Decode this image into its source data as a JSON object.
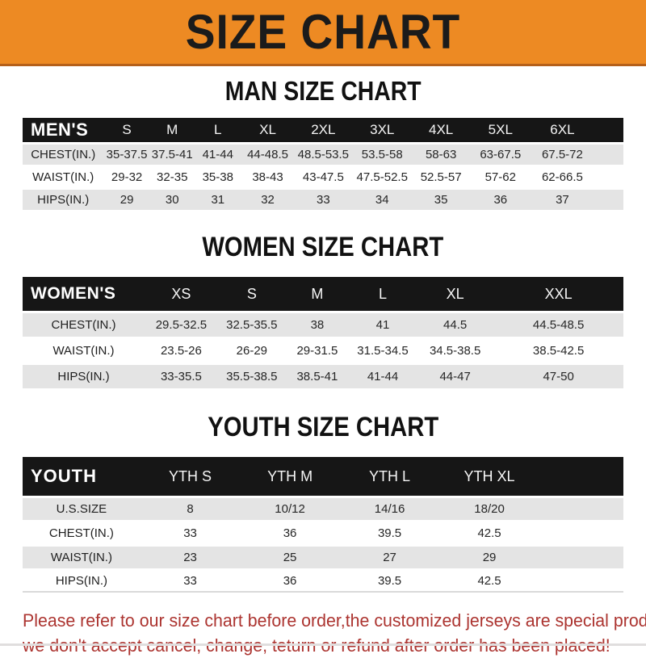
{
  "banner": {
    "title": "SIZE CHART"
  },
  "colors": {
    "banner_bg": "#ED8A23",
    "banner_border": "#B5601A",
    "header_bar": "#161616",
    "row_alt": "#E4E4E4",
    "footer_text": "#AC3430"
  },
  "sections": [
    {
      "heading": "MAN SIZE CHART",
      "header_label": "MEN'S",
      "columns": [
        "S",
        "M",
        "L",
        "XL",
        "2XL",
        "3XL",
        "4XL",
        "5XL",
        "6XL"
      ],
      "rows": [
        {
          "label": "CHEST(IN.)",
          "values": [
            "35-37.5",
            "37.5-41",
            "41-44",
            "44-48.5",
            "48.5-53.5",
            "53.5-58",
            "58-63",
            "63-67.5",
            "67.5-72"
          ]
        },
        {
          "label": "WAIST(IN.)",
          "values": [
            "29-32",
            "32-35",
            "35-38",
            "38-43",
            "43-47.5",
            "47.5-52.5",
            "52.5-57",
            "57-62",
            "62-66.5"
          ]
        },
        {
          "label": "HIPS(IN.)",
          "values": [
            "29",
            "30",
            "31",
            "32",
            "33",
            "34",
            "35",
            "36",
            "37"
          ]
        }
      ]
    },
    {
      "heading": "WOMEN SIZE CHART",
      "header_label": "WOMEN'S",
      "columns": [
        "XS",
        "S",
        "M",
        "L",
        "XL",
        "XXL"
      ],
      "rows": [
        {
          "label": "CHEST(IN.)",
          "values": [
            "29.5-32.5",
            "32.5-35.5",
            "38",
            "41",
            "44.5",
            "44.5-48.5"
          ]
        },
        {
          "label": "WAIST(IN.)",
          "values": [
            "23.5-26",
            "26-29",
            "29-31.5",
            "31.5-34.5",
            "34.5-38.5",
            "38.5-42.5"
          ]
        },
        {
          "label": "HIPS(IN.)",
          "values": [
            "33-35.5",
            "35.5-38.5",
            "38.5-41",
            "41-44",
            "44-47",
            "47-50"
          ]
        }
      ]
    },
    {
      "heading": "YOUTH SIZE CHART",
      "header_label": "YOUTH",
      "columns": [
        "YTH S",
        "YTH M",
        "YTH L",
        "YTH XL"
      ],
      "rows": [
        {
          "label": "U.S.SIZE",
          "values": [
            "8",
            "10/12",
            "14/16",
            "18/20"
          ]
        },
        {
          "label": "CHEST(IN.)",
          "values": [
            "33",
            "36",
            "39.5",
            "42.5"
          ]
        },
        {
          "label": "WAIST(IN.)",
          "values": [
            "23",
            "25",
            "27",
            "29"
          ]
        },
        {
          "label": "HIPS(IN.)",
          "values": [
            "33",
            "36",
            "39.5",
            "42.5"
          ]
        }
      ]
    }
  ],
  "footer": {
    "line1": "Please refer to our size chart before order,the customized jerseys are special products,",
    "line2": "we don't accept cancel, change, teturn or refund after order has been placed!"
  }
}
